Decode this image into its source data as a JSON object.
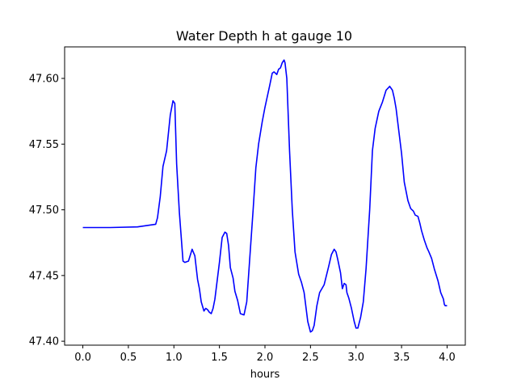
{
  "chart_data": {
    "type": "line",
    "title": "Water Depth h at gauge 10",
    "xlabel": "hours",
    "ylabel": "",
    "xlim": [
      -0.2,
      4.2
    ],
    "ylim": [
      47.397,
      47.624
    ],
    "x_ticks": [
      0.0,
      0.5,
      1.0,
      1.5,
      2.0,
      2.5,
      3.0,
      3.5,
      4.0
    ],
    "x_tick_labels": [
      "0.0",
      "0.5",
      "1.0",
      "1.5",
      "2.0",
      "2.5",
      "3.0",
      "3.5",
      "4.0"
    ],
    "y_ticks": [
      47.4,
      47.45,
      47.5,
      47.55,
      47.6
    ],
    "y_tick_labels": [
      "47.40",
      "47.45",
      "47.50",
      "47.55",
      "47.60"
    ],
    "grid": false,
    "colors": {
      "line": "#0000ff",
      "axes": "#000000",
      "background": "#ffffff"
    },
    "series": [
      {
        "color": "#0000ff",
        "x": [
          0.0,
          0.3,
          0.6,
          0.8,
          0.82,
          0.85,
          0.88,
          0.92,
          0.96,
          0.99,
          1.01,
          1.03,
          1.06,
          1.1,
          1.12,
          1.16,
          1.2,
          1.23,
          1.26,
          1.28,
          1.3,
          1.33,
          1.35,
          1.37,
          1.39,
          1.41,
          1.43,
          1.45,
          1.5,
          1.53,
          1.56,
          1.58,
          1.6,
          1.62,
          1.65,
          1.67,
          1.7,
          1.73,
          1.77,
          1.8,
          1.83,
          1.87,
          1.9,
          1.93,
          1.97,
          2.0,
          2.05,
          2.08,
          2.1,
          2.13,
          2.15,
          2.17,
          2.19,
          2.21,
          2.22,
          2.24,
          2.27,
          2.3,
          2.33,
          2.37,
          2.4,
          2.43,
          2.47,
          2.5,
          2.52,
          2.54,
          2.57,
          2.6,
          2.65,
          2.7,
          2.73,
          2.76,
          2.78,
          2.8,
          2.83,
          2.85,
          2.87,
          2.89,
          2.9,
          2.92,
          2.95,
          2.98,
          3.0,
          3.02,
          3.05,
          3.08,
          3.11,
          3.15,
          3.18,
          3.21,
          3.25,
          3.29,
          3.33,
          3.37,
          3.4,
          3.42,
          3.44,
          3.47,
          3.5,
          3.53,
          3.57,
          3.6,
          3.63,
          3.65,
          3.68,
          3.7,
          3.72,
          3.75,
          3.78,
          3.8,
          3.83,
          3.86,
          3.9,
          3.93,
          3.96,
          3.97,
          3.98,
          4.0
        ],
        "y": [
          47.4865,
          47.4865,
          47.487,
          47.489,
          47.494,
          47.51,
          47.533,
          47.545,
          47.572,
          47.583,
          47.581,
          47.535,
          47.498,
          47.461,
          47.46,
          47.461,
          47.47,
          47.465,
          47.447,
          47.44,
          47.43,
          47.423,
          47.425,
          47.424,
          47.422,
          47.421,
          47.425,
          47.432,
          47.46,
          47.479,
          47.483,
          47.482,
          47.473,
          47.456,
          47.448,
          47.438,
          47.431,
          47.421,
          47.42,
          47.43,
          47.46,
          47.5,
          47.532,
          47.55,
          47.567,
          47.578,
          47.594,
          47.604,
          47.605,
          47.603,
          47.607,
          47.608,
          47.612,
          47.614,
          47.612,
          47.6,
          47.545,
          47.5,
          47.468,
          47.451,
          47.445,
          47.437,
          47.415,
          47.407,
          47.408,
          47.412,
          47.427,
          47.437,
          47.443,
          47.457,
          47.466,
          47.47,
          47.468,
          47.462,
          47.452,
          47.44,
          47.444,
          47.443,
          47.437,
          47.433,
          47.425,
          47.415,
          47.41,
          47.41,
          47.418,
          47.43,
          47.455,
          47.5,
          47.545,
          47.562,
          47.575,
          47.582,
          47.591,
          47.594,
          47.591,
          47.585,
          47.577,
          47.56,
          47.543,
          47.521,
          47.507,
          47.501,
          47.499,
          47.496,
          47.495,
          47.49,
          47.484,
          47.477,
          47.471,
          47.468,
          47.463,
          47.455,
          47.446,
          47.437,
          47.432,
          47.428,
          47.427,
          47.427
        ]
      }
    ]
  }
}
